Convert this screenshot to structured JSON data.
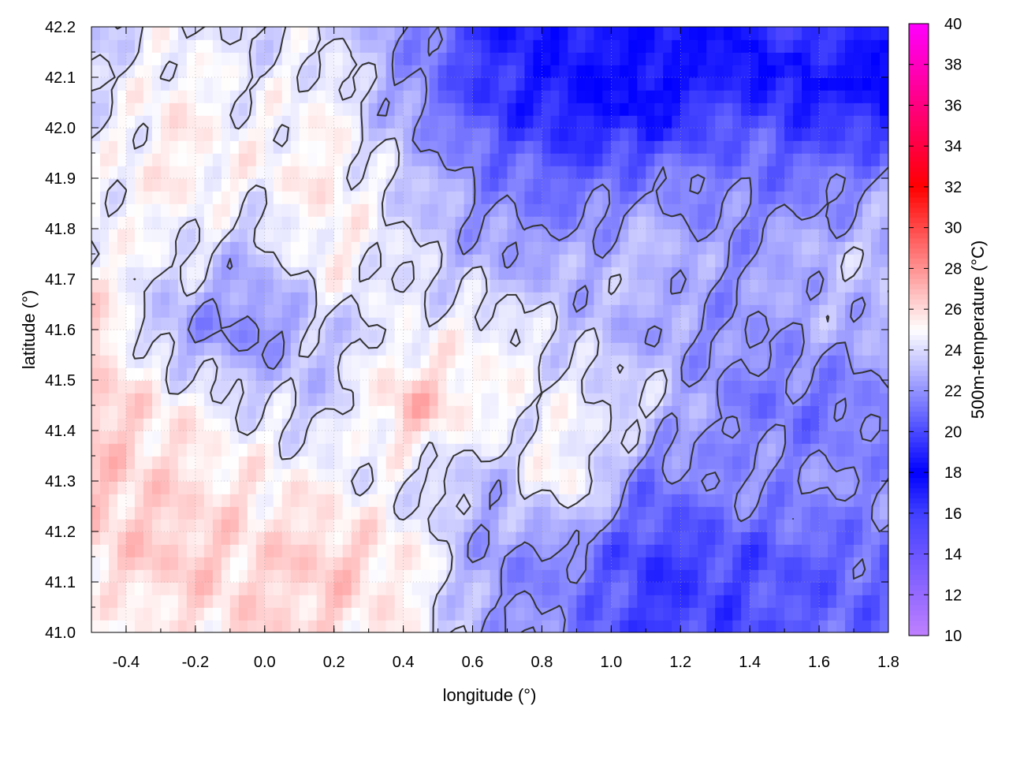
{
  "chart_data": {
    "type": "heatmap",
    "title": "",
    "xlabel": "longitude (°)",
    "ylabel": "latitude (°)",
    "colorbar_label": "500m-temperature (°C)",
    "xlim": [
      -0.5,
      1.8
    ],
    "ylim": [
      41.0,
      42.2
    ],
    "x_ticks": [
      -0.4,
      -0.2,
      0.0,
      0.2,
      0.4,
      0.6,
      0.8,
      1.0,
      1.2,
      1.4,
      1.6,
      1.8
    ],
    "x_tick_labels": [
      "-0.4",
      "-0.2",
      "0.0",
      "0.2",
      "0.4",
      "0.6",
      "0.8",
      "1.0",
      "1.2",
      "1.4",
      "1.6",
      "1.8"
    ],
    "y_ticks": [
      41.0,
      41.1,
      41.2,
      41.3,
      41.4,
      41.5,
      41.6,
      41.7,
      41.8,
      41.9,
      42.0,
      42.1,
      42.2
    ],
    "y_tick_labels": [
      "41.0",
      "41.1",
      "41.2",
      "41.3",
      "41.4",
      "41.5",
      "41.6",
      "41.7",
      "41.8",
      "41.9",
      "42.0",
      "42.1",
      "42.2"
    ],
    "colorbar_range": [
      10,
      40
    ],
    "colorbar_ticks": [
      10,
      12,
      14,
      16,
      18,
      20,
      22,
      24,
      26,
      28,
      30,
      32,
      34,
      36,
      38,
      40
    ],
    "colorbar_tick_labels": [
      "10",
      "12",
      "14",
      "16",
      "18",
      "20",
      "22",
      "24",
      "26",
      "28",
      "30",
      "32",
      "34",
      "36",
      "38",
      "40"
    ],
    "colormap": [
      {
        "value": 10,
        "color": "#c080ff"
      },
      {
        "value": 16,
        "color": "#4040ff"
      },
      {
        "value": 18,
        "color": "#0000ff"
      },
      {
        "value": 25,
        "color": "#ffffff"
      },
      {
        "value": 32,
        "color": "#ff0000"
      },
      {
        "value": 40,
        "color": "#ff00ff"
      }
    ],
    "grid": true,
    "grid_style": "dotted",
    "contour_color": "#333333",
    "field_description": "500 m temperature, warm (23-27 °C) over the west and south-west, cool (14-20 °C) over the north-east and south-east",
    "field_samples": {
      "lon": [
        -0.5,
        -0.27,
        -0.04,
        0.19,
        0.42,
        0.65,
        0.88,
        1.11,
        1.34,
        1.57,
        1.8
      ],
      "lat": [
        41.0,
        41.15,
        41.3,
        41.45,
        41.6,
        41.75,
        41.9,
        42.05,
        42.2
      ],
      "temperature": [
        [
          24.5,
          25.5,
          26.0,
          26.0,
          25.0,
          22.5,
          21.5,
          19.5,
          20.0,
          20.5,
          21.0
        ],
        [
          26.0,
          26.5,
          26.0,
          26.5,
          25.5,
          22.0,
          21.5,
          19.5,
          20.0,
          20.5,
          21.0
        ],
        [
          26.5,
          26.0,
          25.5,
          25.0,
          24.0,
          23.0,
          25.5,
          21.0,
          22.0,
          22.0,
          22.0
        ],
        [
          26.5,
          25.5,
          24.0,
          23.5,
          27.0,
          25.0,
          24.5,
          24.0,
          21.5,
          21.0,
          21.5
        ],
        [
          26.5,
          22.5,
          21.5,
          23.5,
          24.5,
          25.0,
          23.5,
          22.5,
          22.0,
          22.5,
          23.0
        ],
        [
          25.0,
          24.5,
          23.0,
          25.5,
          24.0,
          22.5,
          22.5,
          23.5,
          22.0,
          23.0,
          23.5
        ],
        [
          24.5,
          25.5,
          25.0,
          25.5,
          23.5,
          21.5,
          20.5,
          21.5,
          21.5,
          21.0,
          22.0
        ],
        [
          24.0,
          25.5,
          24.5,
          25.0,
          22.0,
          19.5,
          18.5,
          17.5,
          20.0,
          19.0,
          18.5
        ],
        [
          23.5,
          24.5,
          24.0,
          24.0,
          22.0,
          19.0,
          18.5,
          19.0,
          17.5,
          15.5,
          17.0
        ]
      ]
    }
  }
}
